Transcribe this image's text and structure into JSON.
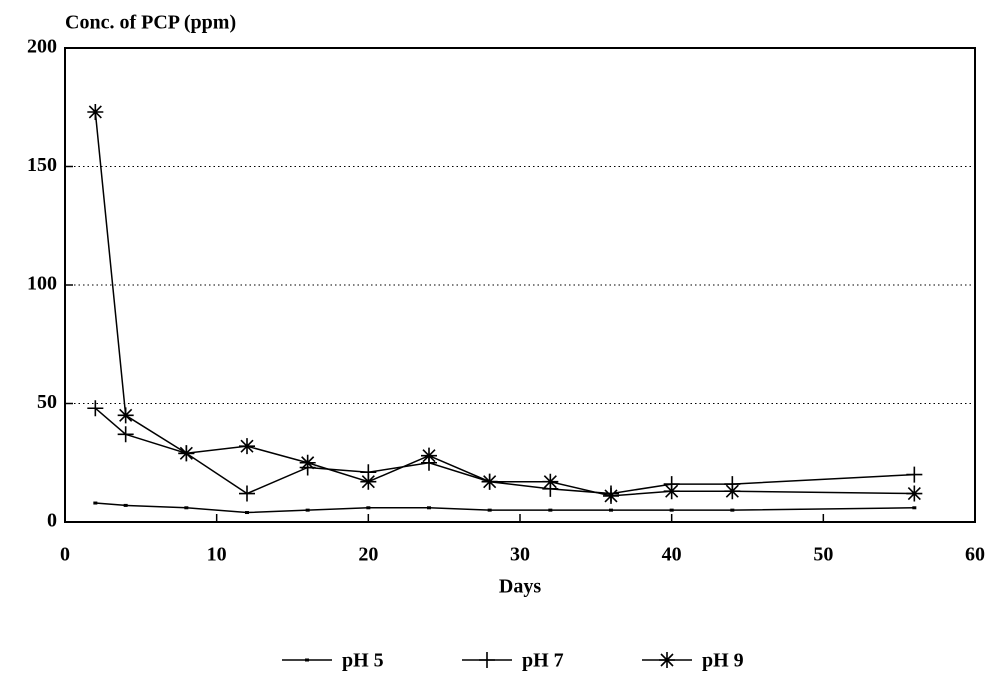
{
  "chart_data": {
    "type": "line",
    "title": "Conc. of PCP (ppm)",
    "x_label": "Days",
    "x": [
      2,
      4,
      8,
      12,
      16,
      20,
      24,
      28,
      32,
      36,
      40,
      44,
      56
    ],
    "series": [
      {
        "name": "pH 5",
        "color": "#000000",
        "marker": "dot",
        "values": [
          8,
          7,
          6,
          4,
          5,
          6,
          6,
          5,
          5,
          5,
          5,
          5,
          6
        ]
      },
      {
        "name": "pH 7",
        "color": "#000000",
        "marker": "plus",
        "values": [
          48,
          37,
          29,
          12,
          23,
          21,
          25,
          17,
          14,
          12,
          16,
          16,
          20
        ]
      },
      {
        "name": "pH 9",
        "color": "#000000",
        "marker": "star",
        "values": [
          173,
          45,
          29,
          32,
          25,
          17,
          28,
          17,
          17,
          11,
          13,
          13,
          12
        ]
      }
    ],
    "xlim": [
      0,
      60
    ],
    "xticks": [
      0,
      10,
      20,
      30,
      40,
      50,
      60
    ],
    "ylim": [
      0,
      200
    ],
    "yticks": [
      0,
      50,
      100,
      150,
      200
    ],
    "grid": true,
    "legend": "bottom"
  }
}
